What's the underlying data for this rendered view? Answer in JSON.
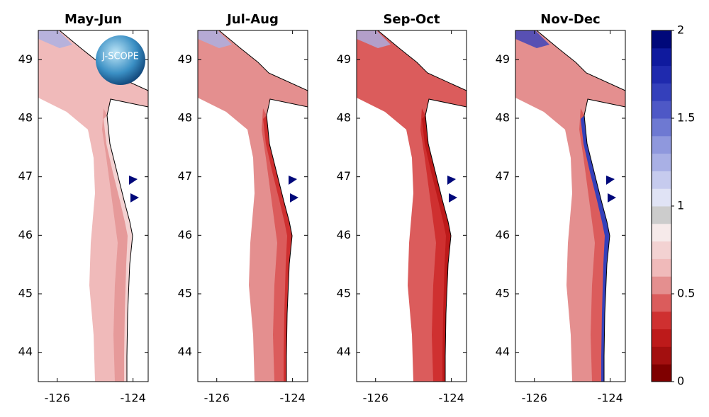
{
  "panels": [
    {
      "title": "May-Jun",
      "base": "#f0baba",
      "inner": "#e69a9a",
      "coast": "#f3d2d2"
    },
    {
      "title": "Jul-Aug",
      "base": "#e48f8f",
      "inner": "#db5c5c",
      "coast": "#cf3030"
    },
    {
      "title": "Sep-Oct",
      "base": "#db5c5c",
      "inner": "#cf3030",
      "coast": "#bd1a1a"
    },
    {
      "title": "Nov-Dec",
      "base": "#e48f8f",
      "inner": "#db5c5c",
      "coast": "#3440bb"
    }
  ],
  "logo": "J-SCOPE",
  "xlim": [
    -126.5,
    -123.6
  ],
  "xticks": [
    -126,
    -124
  ],
  "ylim": [
    43.5,
    49.5
  ],
  "yticks": [
    44,
    45,
    46,
    47,
    48,
    49
  ],
  "colorbar": {
    "lim": [
      0,
      2
    ],
    "ticks": [
      0,
      0.5,
      1,
      1.5,
      2
    ],
    "colors": [
      "#7f0000",
      "#a30f0f",
      "#bd1a1a",
      "#cf3030",
      "#db5c5c",
      "#e48f8f",
      "#f0baba",
      "#f3d2d2",
      "#f6eaea",
      "#cccccc",
      "#e0e3f5",
      "#c6cbee",
      "#a9b0e5",
      "#8f98dd",
      "#6e79d2",
      "#4e58c6",
      "#3440bb",
      "#1f2aae",
      "#0f1a9e",
      "#00087a"
    ]
  }
}
